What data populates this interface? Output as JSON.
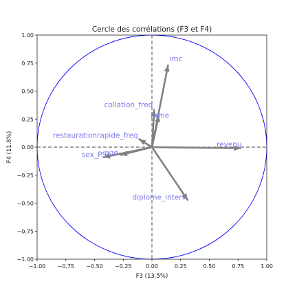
{
  "chart_data": {
    "type": "scatter",
    "title": "Cercle des corrélations (F3 et F4)",
    "xlabel": "F3 (13.5%)",
    "ylabel": "F4 (11.8%)",
    "xlim": [
      -1.0,
      1.0
    ],
    "ylim": [
      -1.0,
      1.0
    ],
    "xticks": [
      "−1.00",
      "−0.75",
      "−0.50",
      "−0.25",
      "0.00",
      "0.25",
      "0.50",
      "0.75",
      "1.00"
    ],
    "yticks": [
      "−1.00",
      "−0.75",
      "−0.50",
      "−0.25",
      "0.00",
      "0.25",
      "0.50",
      "0.75",
      "1.00"
    ],
    "grid": false,
    "unit_circle": true,
    "reference_lines": "dashed at x=0 and y=0",
    "colors": {
      "circle": "#0000ff",
      "arrow": "#808080",
      "label": "#7b7bea",
      "reference": "#808080"
    },
    "variables": [
      {
        "name": "imc",
        "x": 0.14,
        "y": 0.73
      },
      {
        "name": "collation_freq",
        "x": 0.02,
        "y": 0.33
      },
      {
        "name": "fume",
        "x": 0.06,
        "y": 0.28
      },
      {
        "name": "restaurationrapide_freq",
        "x": -0.11,
        "y": 0.07
      },
      {
        "name": "revenu",
        "x": 0.77,
        "y": -0.01
      },
      {
        "name": "sex_PS",
        "x": -0.42,
        "y": -0.09
      },
      {
        "name": "age",
        "x": -0.27,
        "y": -0.07
      },
      {
        "name": "diplome_interv",
        "x": 0.31,
        "y": -0.47
      }
    ]
  }
}
